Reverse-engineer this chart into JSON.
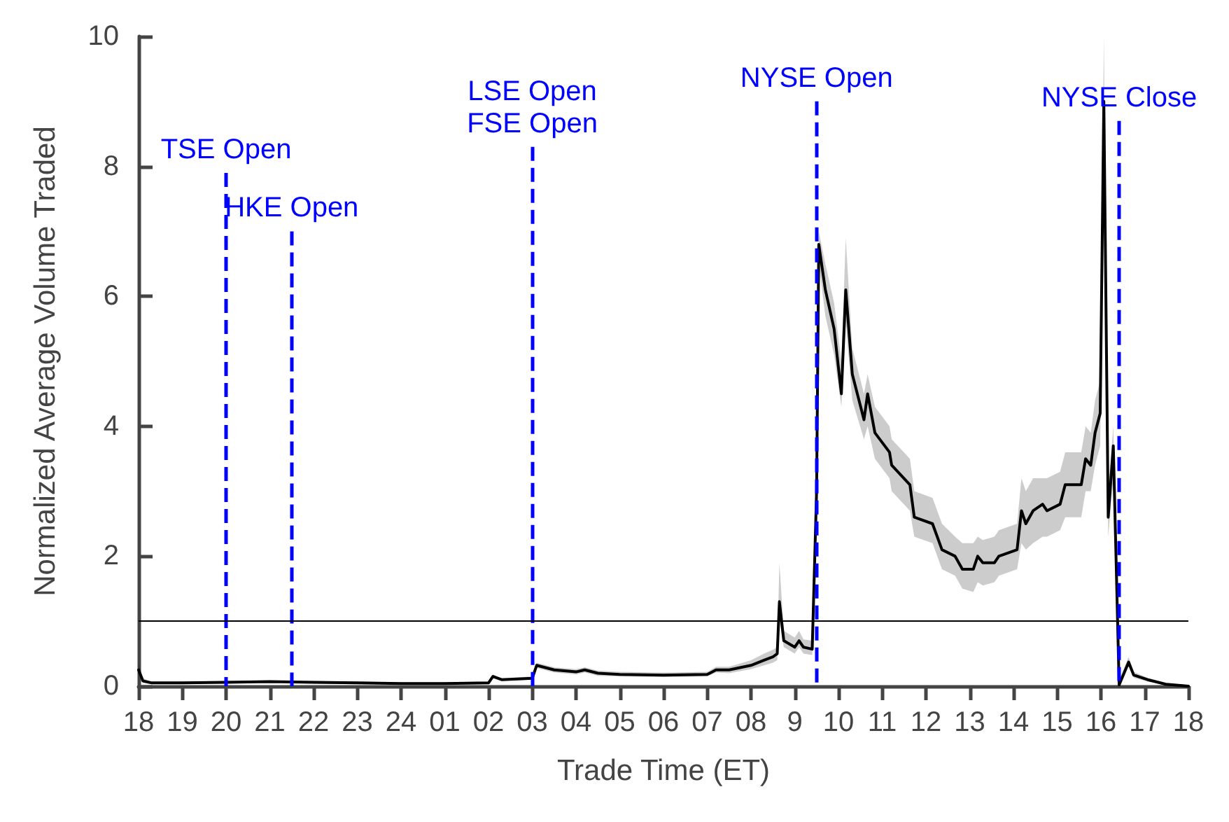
{
  "chart_data": {
    "type": "line",
    "xlabel": "Trade Time (ET)",
    "ylabel": "Normalized Average Volume Traded",
    "xlim": [
      "--01-01T18:00",
      "--01-02T18:00"
    ],
    "ylim": [
      0,
      10
    ],
    "yticks": [
      0,
      2,
      4,
      6,
      8,
      10
    ],
    "xticks": [
      {
        "value": "--01-01T18:00",
        "label": "18"
      },
      {
        "value": "--01-01T19:00",
        "label": "19"
      },
      {
        "value": "--01-01T20:00",
        "label": "20"
      },
      {
        "value": "--01-01T21:00",
        "label": "21"
      },
      {
        "value": "--01-01T22:00",
        "label": "22"
      },
      {
        "value": "--01-01T23:00",
        "label": "23"
      },
      {
        "value": "--01-02T00:00",
        "label": "24"
      },
      {
        "value": "--01-02T01:00",
        "label": "01"
      },
      {
        "value": "--01-02T02:00",
        "label": "02"
      },
      {
        "value": "--01-02T03:00",
        "label": "03"
      },
      {
        "value": "--01-02T04:00",
        "label": "04"
      },
      {
        "value": "--01-02T05:00",
        "label": "05"
      },
      {
        "value": "--01-02T06:00",
        "label": "06"
      },
      {
        "value": "--01-02T07:00",
        "label": "07"
      },
      {
        "value": "--01-02T08:00",
        "label": "08"
      },
      {
        "value": "--01-02T09:00",
        "label": "9"
      },
      {
        "value": "--01-02T10:00",
        "label": "10"
      },
      {
        "value": "--01-02T11:00",
        "label": "11"
      },
      {
        "value": "--01-02T12:00",
        "label": "12"
      },
      {
        "value": "--01-02T13:00",
        "label": "13"
      },
      {
        "value": "--01-02T14:00",
        "label": "14"
      },
      {
        "value": "--01-02T15:00",
        "label": "15"
      },
      {
        "value": "--01-02T16:00",
        "label": "16"
      },
      {
        "value": "--01-02T17:00",
        "label": "17"
      },
      {
        "value": "--01-02T18:00",
        "label": "18"
      }
    ],
    "grid": false,
    "marker": "none",
    "line_style": "solid",
    "series": [
      {
        "color": "#000000",
        "x": [
          "--01-01T18:00",
          "--01-01T18:06",
          "--01-01T18:18",
          "--01-01T19:00",
          "--01-01T20:00",
          "--01-01T21:00",
          "--01-01T22:00",
          "--01-01T23:00",
          "--01-02T00:00",
          "--01-02T01:00",
          "--01-02T02:00",
          "--01-02T02:06",
          "--01-02T02:18",
          "--01-02T03:00",
          "--01-02T03:06",
          "--01-02T03:30",
          "--01-02T04:00",
          "--01-02T04:12",
          "--01-02T04:30",
          "--01-02T05:00",
          "--01-02T06:00",
          "--01-02T07:00",
          "--01-02T07:12",
          "--01-02T07:30",
          "--01-02T08:00",
          "--01-02T08:18",
          "--01-02T08:30",
          "--01-02T08:36",
          "--01-02T08:39",
          "--01-02T08:45",
          "--01-02T09:00",
          "--01-02T09:06",
          "--01-02T09:12",
          "--01-02T09:24",
          "--01-02T09:30",
          "--01-02T09:33",
          "--01-02T09:42",
          "--01-02T09:54",
          "--01-02T10:04",
          "--01-02T10:10",
          "--01-02T10:19",
          "--01-02T10:35",
          "--01-02T10:40",
          "--01-02T10:50",
          "--01-02T11:10",
          "--01-02T11:13",
          "--01-02T11:38",
          "--01-02T11:44",
          "--01-02T12:09",
          "--01-02T12:22",
          "--01-02T12:40",
          "--01-02T12:50",
          "--01-02T13:05",
          "--01-02T13:11",
          "--01-02T13:18",
          "--01-02T13:34",
          "--01-02T13:40",
          "--01-02T14:05",
          "--01-02T14:11",
          "--01-02T14:17",
          "--01-02T14:27",
          "--01-02T14:40",
          "--01-02T14:46",
          "--01-02T15:04",
          "--01-02T15:11",
          "--01-02T15:33",
          "--01-02T15:39",
          "--01-02T15:46",
          "--01-02T15:52",
          "--01-02T15:59",
          "--01-02T16:04",
          "--01-02T16:10",
          "--01-02T16:17",
          "--01-02T16:25",
          "--01-02T16:38",
          "--01-02T16:45",
          "--01-02T17:04",
          "--01-02T17:29",
          "--01-02T18:00"
        ],
        "values": [
          0.25,
          0.08,
          0.05,
          0.05,
          0.06,
          0.07,
          0.06,
          0.05,
          0.04,
          0.04,
          0.05,
          0.15,
          0.1,
          0.12,
          0.32,
          0.25,
          0.22,
          0.25,
          0.2,
          0.18,
          0.17,
          0.18,
          0.25,
          0.25,
          0.32,
          0.4,
          0.45,
          0.5,
          1.3,
          0.7,
          0.6,
          0.7,
          0.6,
          0.57,
          3.0,
          6.8,
          6.1,
          5.5,
          4.5,
          6.1,
          4.8,
          4.1,
          4.5,
          3.9,
          3.6,
          3.4,
          3.1,
          2.6,
          2.5,
          2.1,
          2.0,
          1.8,
          1.8,
          2.0,
          1.9,
          1.9,
          2.0,
          2.1,
          2.7,
          2.5,
          2.7,
          2.8,
          2.7,
          2.8,
          3.1,
          3.1,
          3.5,
          3.4,
          3.9,
          4.2,
          9.0,
          2.6,
          3.7,
          0.02,
          0.37,
          0.17,
          0.1,
          0.03,
          0.0
        ],
        "lower": [
          0.2,
          0.05,
          0.03,
          0.03,
          0.04,
          0.05,
          0.04,
          0.03,
          0.03,
          0.03,
          0.03,
          0.12,
          0.08,
          0.1,
          0.28,
          0.21,
          0.18,
          0.21,
          0.16,
          0.15,
          0.14,
          0.15,
          0.21,
          0.2,
          0.26,
          0.32,
          0.36,
          0.4,
          1.0,
          0.6,
          0.5,
          0.6,
          0.5,
          0.48,
          2.8,
          6.5,
          5.7,
          5.1,
          4.3,
          5.6,
          4.4,
          3.8,
          4.0,
          3.5,
          3.2,
          3.0,
          2.7,
          2.3,
          2.2,
          1.8,
          1.7,
          1.5,
          1.45,
          1.6,
          1.55,
          1.6,
          1.7,
          1.8,
          2.2,
          2.1,
          2.2,
          2.3,
          2.3,
          2.4,
          2.6,
          2.6,
          3.0,
          3.0,
          3.4,
          3.7,
          8.0,
          2.3,
          3.2,
          0.0,
          0.3,
          0.13,
          0.07,
          0.02,
          0.0
        ],
        "upper": [
          0.35,
          0.12,
          0.07,
          0.07,
          0.08,
          0.09,
          0.08,
          0.07,
          0.06,
          0.06,
          0.07,
          0.18,
          0.12,
          0.15,
          0.36,
          0.29,
          0.26,
          0.29,
          0.24,
          0.22,
          0.21,
          0.22,
          0.3,
          0.3,
          0.4,
          0.5,
          0.56,
          0.6,
          1.9,
          0.85,
          0.75,
          0.85,
          0.72,
          0.7,
          3.2,
          7.0,
          6.5,
          5.9,
          5.0,
          6.9,
          5.2,
          4.5,
          4.8,
          4.3,
          4.0,
          3.8,
          3.5,
          3.0,
          2.9,
          2.5,
          2.3,
          2.2,
          2.2,
          2.3,
          2.25,
          2.3,
          2.4,
          2.5,
          3.2,
          3.0,
          3.2,
          3.2,
          3.2,
          3.3,
          3.6,
          3.6,
          4.0,
          3.9,
          4.4,
          4.7,
          10.0,
          3.0,
          4.0,
          0.1,
          0.45,
          0.22,
          0.13,
          0.05,
          0.02
        ]
      }
    ],
    "ref_lines": [
      {
        "axis": "x",
        "value": "--01-01T20:00",
        "label": "TSE Open",
        "color": "#0000ff",
        "line_style": "dashed"
      },
      {
        "axis": "x",
        "value": "--01-01T21:30",
        "label": "HKE Open",
        "color": "#0000ff",
        "line_style": "dashed"
      },
      {
        "axis": "x",
        "value": "--01-02T03:00",
        "label": "LSE Open\nFSE Open",
        "color": "#0000ff",
        "line_style": "dashed"
      },
      {
        "axis": "x",
        "value": "--01-02T09:30",
        "label": "NYSE Open",
        "color": "#0000ff",
        "line_style": "dashed"
      },
      {
        "axis": "x",
        "value": "--01-02T16:25",
        "label": "NYSE Close",
        "color": "#0000ff",
        "line_style": "dashed"
      },
      {
        "axis": "y",
        "value": 1,
        "label": null,
        "color": "#000000",
        "line_style": "solid"
      }
    ]
  }
}
